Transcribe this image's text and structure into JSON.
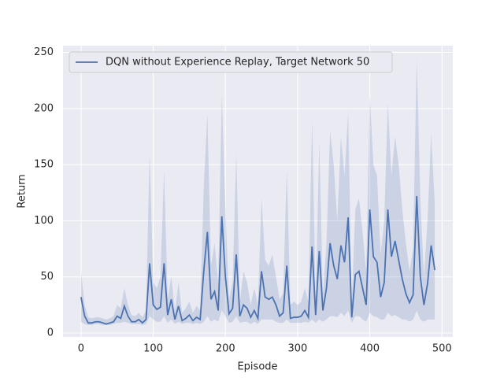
{
  "chart_data": {
    "type": "line",
    "xlabel": "Episode",
    "ylabel": "Return",
    "x": [
      0,
      5,
      10,
      15,
      20,
      25,
      30,
      35,
      40,
      45,
      50,
      55,
      60,
      65,
      70,
      75,
      80,
      85,
      90,
      95,
      100,
      105,
      110,
      115,
      120,
      125,
      130,
      135,
      140,
      145,
      150,
      155,
      160,
      165,
      170,
      175,
      180,
      185,
      190,
      195,
      200,
      205,
      210,
      215,
      220,
      225,
      230,
      235,
      240,
      245,
      250,
      255,
      260,
      265,
      270,
      275,
      280,
      285,
      290,
      295,
      300,
      305,
      310,
      315,
      320,
      325,
      330,
      335,
      340,
      345,
      350,
      355,
      360,
      365,
      370,
      375,
      380,
      385,
      390,
      395,
      400,
      405,
      410,
      415,
      420,
      425,
      430,
      435,
      440,
      445,
      450,
      455,
      460,
      465,
      470,
      475,
      480,
      485,
      490
    ],
    "series": [
      {
        "name": "DQN without Experience Replay, Target Network 50",
        "color": "#4c72b0",
        "values": [
          32,
          15,
          9,
          9,
          10,
          10,
          9,
          8,
          9,
          10,
          15,
          13,
          24,
          15,
          10,
          10,
          12,
          9,
          12,
          62,
          25,
          21,
          23,
          62,
          16,
          30,
          12,
          24,
          11,
          13,
          16,
          11,
          14,
          12,
          55,
          90,
          30,
          37,
          20,
          104,
          50,
          17,
          22,
          70,
          15,
          25,
          22,
          14,
          20,
          13,
          55,
          32,
          30,
          32,
          25,
          15,
          18,
          60,
          13,
          14,
          14,
          15,
          20,
          14,
          77,
          16,
          73,
          20,
          40,
          80,
          60,
          48,
          78,
          63,
          103,
          14,
          52,
          55,
          40,
          25,
          110,
          68,
          63,
          32,
          45,
          110,
          68,
          82,
          65,
          48,
          35,
          27,
          34,
          122,
          50,
          25,
          44,
          78,
          56
        ],
        "lower": [
          10,
          8,
          7,
          7,
          8,
          8,
          7,
          7,
          7,
          8,
          9,
          9,
          10,
          9,
          8,
          8,
          8,
          7,
          8,
          15,
          12,
          10,
          10,
          15,
          9,
          12,
          8,
          10,
          8,
          9,
          9,
          8,
          9,
          8,
          10,
          15,
          10,
          12,
          10,
          20,
          15,
          9,
          10,
          15,
          9,
          10,
          10,
          8,
          10,
          8,
          12,
          12,
          12,
          12,
          10,
          9,
          9,
          12,
          9,
          9,
          9,
          9,
          10,
          9,
          12,
          9,
          12,
          10,
          12,
          15,
          15,
          14,
          18,
          15,
          20,
          9,
          15,
          15,
          12,
          10,
          18,
          15,
          14,
          12,
          12,
          18,
          15,
          16,
          14,
          12,
          12,
          10,
          12,
          20,
          12,
          10,
          12,
          12,
          12
        ],
        "upper": [
          54,
          25,
          14,
          13,
          14,
          14,
          13,
          12,
          13,
          15,
          25,
          22,
          40,
          25,
          16,
          15,
          18,
          14,
          20,
          160,
          45,
          40,
          50,
          145,
          30,
          50,
          20,
          45,
          18,
          22,
          28,
          18,
          24,
          20,
          130,
          195,
          60,
          80,
          45,
          212,
          110,
          30,
          45,
          160,
          28,
          55,
          45,
          25,
          40,
          25,
          120,
          65,
          60,
          70,
          50,
          30,
          35,
          145,
          25,
          28,
          25,
          28,
          40,
          28,
          190,
          30,
          170,
          35,
          80,
          180,
          150,
          100,
          175,
          140,
          197,
          28,
          110,
          120,
          90,
          55,
          212,
          150,
          140,
          70,
          100,
          205,
          140,
          175,
          150,
          110,
          80,
          55,
          75,
          245,
          120,
          50,
          100,
          178,
          115
        ]
      }
    ],
    "xlim": [
      -25,
      515
    ],
    "ylim": [
      -3.5,
      256
    ],
    "xticks": [
      0,
      100,
      200,
      300,
      400,
      500
    ],
    "yticks": [
      0,
      50,
      100,
      150,
      200,
      250
    ],
    "grid": true,
    "legend": "upper left"
  }
}
